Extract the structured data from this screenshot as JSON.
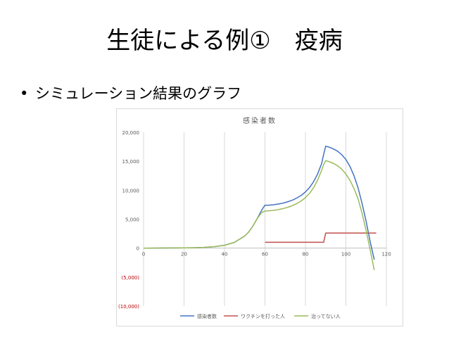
{
  "slide": {
    "title": "生徒による例①　疫病",
    "bullet_marker": "•",
    "bullet_text": "シミュレーション結果のグラフ"
  },
  "chart_data": {
    "type": "line",
    "title": "感染者数",
    "xlabel": "",
    "ylabel": "",
    "xlim": [
      0,
      120
    ],
    "ylim": [
      -10000,
      20000
    ],
    "x_ticks": [
      0,
      20,
      40,
      60,
      80,
      100,
      120
    ],
    "x_tick_labels": [
      "0",
      "20",
      "40",
      "60",
      "80",
      "100",
      "120"
    ],
    "y_ticks": [
      20000,
      15000,
      10000,
      5000,
      0,
      -5000,
      -10000
    ],
    "y_tick_labels": [
      "20,000",
      "15,000",
      "10,000",
      "5,000",
      "0",
      "(5,000)",
      "(10,000)"
    ],
    "grid": "vertical",
    "legend_position": "bottom",
    "colors": {
      "infected": "#4472c4",
      "vaccinated": "#c0504d",
      "not_cured": "#9bbb59",
      "grid": "#d9d9d9",
      "negative_tick": "#c00000"
    },
    "series": [
      {
        "name": "感染者数",
        "color": "#4472c4",
        "x": [
          0,
          10,
          20,
          25,
          30,
          35,
          40,
          45,
          50,
          52,
          54,
          56,
          58,
          59,
          60,
          62,
          64,
          66,
          68,
          70,
          72,
          74,
          76,
          78,
          80,
          82,
          84,
          86,
          88,
          89,
          90,
          92,
          94,
          96,
          98,
          100,
          102,
          104,
          106,
          108,
          110,
          112,
          114
        ],
        "values": [
          0,
          15,
          40,
          70,
          130,
          250,
          500,
          1000,
          2100,
          2800,
          3800,
          5000,
          6300,
          6900,
          7400,
          7420,
          7480,
          7580,
          7700,
          7870,
          8080,
          8350,
          8700,
          9130,
          9700,
          10450,
          11450,
          12800,
          14600,
          16200,
          17600,
          17400,
          17100,
          16700,
          16100,
          15300,
          14100,
          12500,
          10400,
          7700,
          4600,
          1100,
          -2000
        ]
      },
      {
        "name": "ワクチンを打った人",
        "color": "#c0504d",
        "x": [
          60,
          70,
          80,
          88,
          89,
          90,
          95,
          100,
          105,
          110,
          115
        ],
        "values": [
          1000,
          1000,
          1000,
          1000,
          1000,
          2600,
          2600,
          2600,
          2600,
          2600,
          2600
        ]
      },
      {
        "name": "治ってない人",
        "color": "#9bbb59",
        "x": [
          0,
          10,
          20,
          25,
          30,
          35,
          40,
          45,
          50,
          52,
          54,
          56,
          58,
          59,
          60,
          62,
          64,
          66,
          68,
          70,
          72,
          74,
          76,
          78,
          80,
          82,
          84,
          86,
          88,
          89,
          90,
          92,
          94,
          96,
          98,
          100,
          102,
          104,
          106,
          108,
          110,
          112,
          114
        ],
        "values": [
          0,
          15,
          40,
          70,
          130,
          250,
          500,
          1000,
          2100,
          2800,
          3800,
          5000,
          6000,
          6250,
          6400,
          6450,
          6520,
          6620,
          6750,
          6920,
          7130,
          7400,
          7740,
          8170,
          8720,
          9450,
          10420,
          11730,
          13440,
          14440,
          15100,
          14900,
          14600,
          14200,
          13600,
          12800,
          11700,
          10300,
          8500,
          6000,
          3000,
          -300,
          -3800
        ]
      }
    ]
  }
}
